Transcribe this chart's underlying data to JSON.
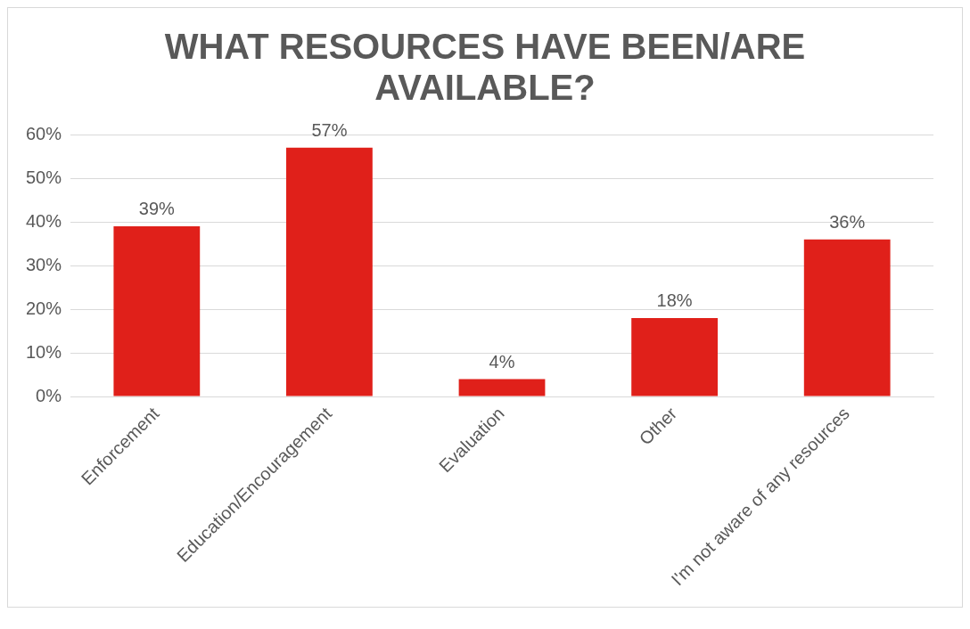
{
  "chart_data": {
    "type": "bar",
    "title": "WHAT RESOURCES HAVE BEEN/ARE AVAILABLE?",
    "categories": [
      "Enforcement",
      "Education/Encouragement",
      "Evaluation",
      "Other",
      "I'm not aware of any resources"
    ],
    "values": [
      39,
      57,
      4,
      18,
      36
    ],
    "value_labels": [
      "39%",
      "57%",
      "4%",
      "18%",
      "36%"
    ],
    "color": "#e0201a",
    "ylim": [
      0,
      60
    ],
    "yticks": [
      {
        "value": 0,
        "label": "0%"
      },
      {
        "value": 10,
        "label": "10%"
      },
      {
        "value": 20,
        "label": "20%"
      },
      {
        "value": 30,
        "label": "30%"
      },
      {
        "value": 40,
        "label": "40%"
      },
      {
        "value": 50,
        "label": "50%"
      },
      {
        "value": 60,
        "label": "60%"
      }
    ],
    "grid": "y",
    "legend": false
  }
}
